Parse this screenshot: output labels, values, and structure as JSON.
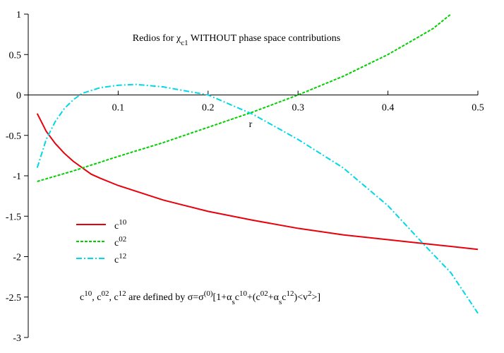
{
  "chart_data": {
    "type": "line",
    "title": [
      "Redios for χ",
      {
        "sub": "c1"
      },
      " WITHOUT phase space contributions"
    ],
    "x_label": "r",
    "annotation": [
      "c",
      {
        "sup": "10"
      },
      ", c",
      {
        "sup": "02"
      },
      ", c",
      {
        "sup": "12"
      },
      " are defined by σ=σ",
      {
        "sup": "(0)"
      },
      "[1+α",
      {
        "sub": "s"
      },
      "c",
      {
        "sup": "10"
      },
      "+(c",
      {
        "sup": "02"
      },
      "+α",
      {
        "sub": "s"
      },
      "c",
      {
        "sup": "12"
      },
      ")<v",
      {
        "sup": "2"
      },
      ">]"
    ],
    "xlim": [
      0,
      0.5
    ],
    "ylim": [
      -3,
      1
    ],
    "xticks": [
      0.1,
      0.2,
      0.3,
      0.4,
      0.5
    ],
    "yticks": [
      1,
      0.5,
      0,
      -0.5,
      -1,
      -1.5,
      -2,
      -2.5,
      -3
    ],
    "series": [
      {
        "name": [
          "c",
          {
            "sup": "10"
          }
        ],
        "color": "#e8000b",
        "dash": "solid",
        "x": [
          0.01,
          0.02,
          0.03,
          0.04,
          0.05,
          0.06,
          0.07,
          0.08,
          0.1,
          0.15,
          0.2,
          0.25,
          0.3,
          0.35,
          0.4,
          0.45,
          0.5
        ],
        "values": [
          -0.23,
          -0.45,
          -0.6,
          -0.72,
          -0.82,
          -0.9,
          -0.98,
          -1.03,
          -1.12,
          -1.3,
          -1.44,
          -1.55,
          -1.65,
          -1.73,
          -1.79,
          -1.85,
          -1.91
        ]
      },
      {
        "name": [
          "c",
          {
            "sup": "02"
          }
        ],
        "color": "#00d000",
        "dash": "dashed",
        "x": [
          0.01,
          0.05,
          0.1,
          0.15,
          0.2,
          0.25,
          0.3,
          0.35,
          0.4,
          0.45,
          0.47
        ],
        "values": [
          -1.07,
          -0.94,
          -0.76,
          -0.59,
          -0.4,
          -0.21,
          0.0,
          0.23,
          0.5,
          0.82,
          1.0
        ]
      },
      {
        "name": [
          "c",
          {
            "sup": "12"
          }
        ],
        "color": "#00d8e8",
        "dash": "dashdot",
        "x": [
          0.01,
          0.02,
          0.03,
          0.04,
          0.05,
          0.06,
          0.08,
          0.1,
          0.12,
          0.15,
          0.2,
          0.25,
          0.3,
          0.35,
          0.4,
          0.44,
          0.47,
          0.5
        ],
        "values": [
          -0.9,
          -0.55,
          -0.33,
          -0.17,
          -0.06,
          0.02,
          0.09,
          0.12,
          0.13,
          0.1,
          0.0,
          -0.24,
          -0.55,
          -0.9,
          -1.37,
          -1.85,
          -2.2,
          -2.7
        ]
      }
    ]
  }
}
